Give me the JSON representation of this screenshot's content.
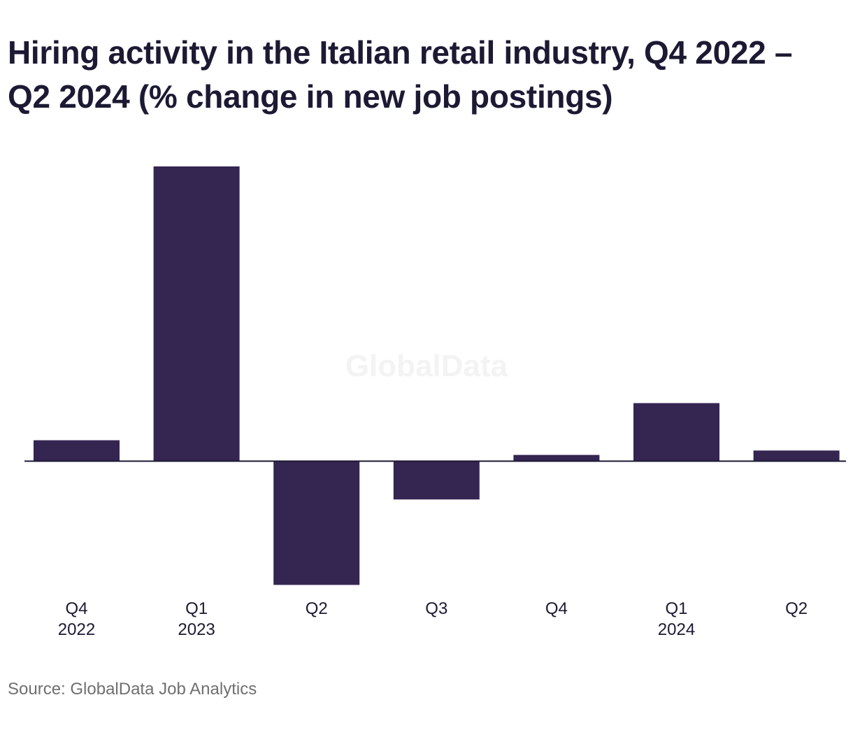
{
  "page": {
    "title": "Hiring activity in the Italian retail industry, Q4 2022 – Q2 2024 (% change in new job postings)",
    "source": "Source: GlobalData Job Analytics",
    "watermark": "GlobalData"
  },
  "colors": {
    "bar": "#352551",
    "axis": "#1c1a33",
    "text": "#1c1a33",
    "source_text": "#6f6f6f",
    "watermark": "#f3f3f3"
  },
  "chart_data": {
    "type": "bar",
    "title": "Hiring activity in the Italian retail industry, Q4 2022 – Q2 2024 (% change in new job postings)",
    "xlabel": "",
    "ylabel": "",
    "categories": [
      {
        "label": "Q4",
        "year": "2022"
      },
      {
        "label": "Q1",
        "year": "2023"
      },
      {
        "label": "Q2",
        "year": ""
      },
      {
        "label": "Q3",
        "year": ""
      },
      {
        "label": "Q4",
        "year": ""
      },
      {
        "label": "Q1",
        "year": "2024"
      },
      {
        "label": "Q2",
        "year": ""
      }
    ],
    "values": [
      7.1,
      100,
      -42,
      -13,
      2.1,
      19.7,
      3.6
    ],
    "ylim": [
      -42,
      100
    ],
    "grid": false,
    "legend": "none",
    "y_axis_shown": false
  }
}
